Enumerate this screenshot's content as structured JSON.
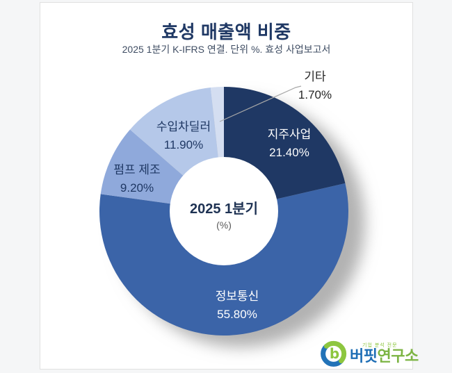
{
  "chart_data": {
    "type": "pie",
    "variant": "donut",
    "title": "효성 매출액 비중",
    "subtitle": "2025 1분기 K-IFRS 연결. 단위 %. 효성 사업보고서",
    "unit": "%",
    "center_line1": "2025 1분기",
    "center_line2": "(%)",
    "start_angle_deg": 0,
    "direction": "clockwise",
    "inner_radius_ratio": 0.435,
    "legend": "none",
    "segments": [
      {
        "label": "지주사업",
        "value": 21.4,
        "display": "21.40%",
        "color": "#1F3864",
        "label_color": "#FFFFFF"
      },
      {
        "label": "정보통신",
        "value": 55.8,
        "display": "55.80%",
        "color": "#3B64A8",
        "label_color": "#FFFFFF"
      },
      {
        "label": "펌프 제조",
        "value": 9.2,
        "display": "9.20%",
        "color": "#8FA9DB",
        "label_color": "#1F3864"
      },
      {
        "label": "수입차딜러",
        "value": 11.9,
        "display": "11.90%",
        "color": "#B5C8E9",
        "label_color": "#1F3864"
      },
      {
        "label": "기타",
        "value": 1.7,
        "display": "1.70%",
        "color": "#D4DEF1",
        "label_color": "#262626"
      }
    ]
  },
  "style": {
    "title_color": "#1F3864",
    "subtitle_color": "#3F4D63",
    "leader_line_color": "#A8A8A8"
  },
  "logo": {
    "tagline": "기업 분석 전문",
    "name_blue": "버핏",
    "name_green": "연구소",
    "blue": "#1E6EB5",
    "green": "#7CB443"
  }
}
